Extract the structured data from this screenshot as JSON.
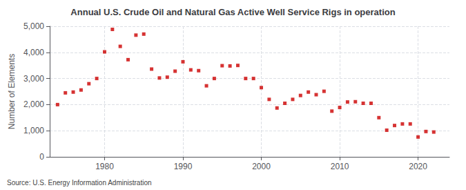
{
  "chart_data": {
    "type": "scatter",
    "title": "Annual U.S. Crude Oil and Natural Gas Active Well Service Rigs in operation",
    "ylabel": "Number of Elements",
    "annotation": "Source: U.S. Energy Information Administration",
    "color": "#cc0000",
    "marker": "square",
    "grid": true,
    "xlim": [
      1973,
      2024
    ],
    "xticks": [
      1980,
      1990,
      2000,
      2010,
      2020
    ],
    "ylim": [
      0,
      5000
    ],
    "yticks": [
      0,
      {
        "value": 1000,
        "label": "1,000"
      },
      {
        "value": 2000,
        "label": "2,000"
      },
      {
        "value": 3000,
        "label": "3,000"
      },
      {
        "value": 4000,
        "label": "4,000"
      },
      {
        "value": 5000,
        "label": "5,000"
      }
    ],
    "x": [
      1974,
      1975,
      1976,
      1977,
      1978,
      1979,
      1980,
      1981,
      1982,
      1983,
      1984,
      1985,
      1986,
      1987,
      1988,
      1989,
      1990,
      1991,
      1992,
      1993,
      1994,
      1995,
      1996,
      1997,
      1998,
      1999,
      2000,
      2001,
      2002,
      2003,
      2004,
      2005,
      2006,
      2007,
      2008,
      2009,
      2010,
      2011,
      2012,
      2013,
      2014,
      2015,
      2016,
      2017,
      2018,
      2019,
      2020,
      2021,
      2022
    ],
    "values": [
      2000,
      2450,
      2480,
      2560,
      2800,
      3000,
      4020,
      4880,
      4230,
      3720,
      4660,
      4700,
      3360,
      3020,
      3050,
      3280,
      3640,
      3330,
      3300,
      2720,
      3000,
      3490,
      3480,
      3500,
      3000,
      3000,
      2650,
      2200,
      1870,
      2050,
      2200,
      2350,
      2480,
      2380,
      2510,
      1750,
      1890,
      2100,
      2110,
      2050,
      2050,
      1500,
      1020,
      1200,
      1260,
      1260,
      760,
      970,
      950
    ]
  }
}
